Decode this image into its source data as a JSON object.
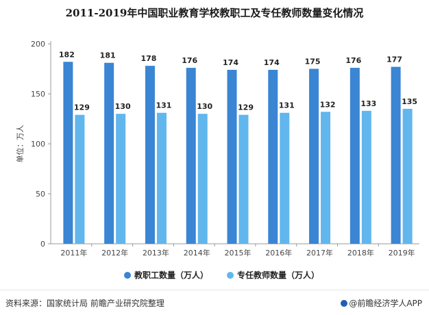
{
  "chart_data": {
    "type": "bar",
    "title": "2011-2019年中国职业教育学校教职工及专任教师数量变化情况",
    "ylabel": "单位：万人",
    "xlabel": "",
    "ylim": [
      0,
      200
    ],
    "yticks": [
      0,
      50,
      100,
      150,
      200
    ],
    "categories": [
      "2011年",
      "2012年",
      "2013年",
      "2014年",
      "2015年",
      "2016年",
      "2017年",
      "2018年",
      "2019年"
    ],
    "series": [
      {
        "name": "教职工数量（万人）",
        "color": "#3a85d4",
        "values": [
          182,
          181,
          178,
          176,
          174,
          174,
          175,
          176,
          177
        ]
      },
      {
        "name": "专任教师数量（万人）",
        "color": "#61b6ee",
        "values": [
          129,
          130,
          131,
          130,
          129,
          131,
          132,
          133,
          135
        ]
      }
    ],
    "legend": "bottom"
  },
  "footer": {
    "source": "资料来源：国家统计局 前瞻产业研究院整理",
    "brand": "@前瞻经济学人APP"
  }
}
